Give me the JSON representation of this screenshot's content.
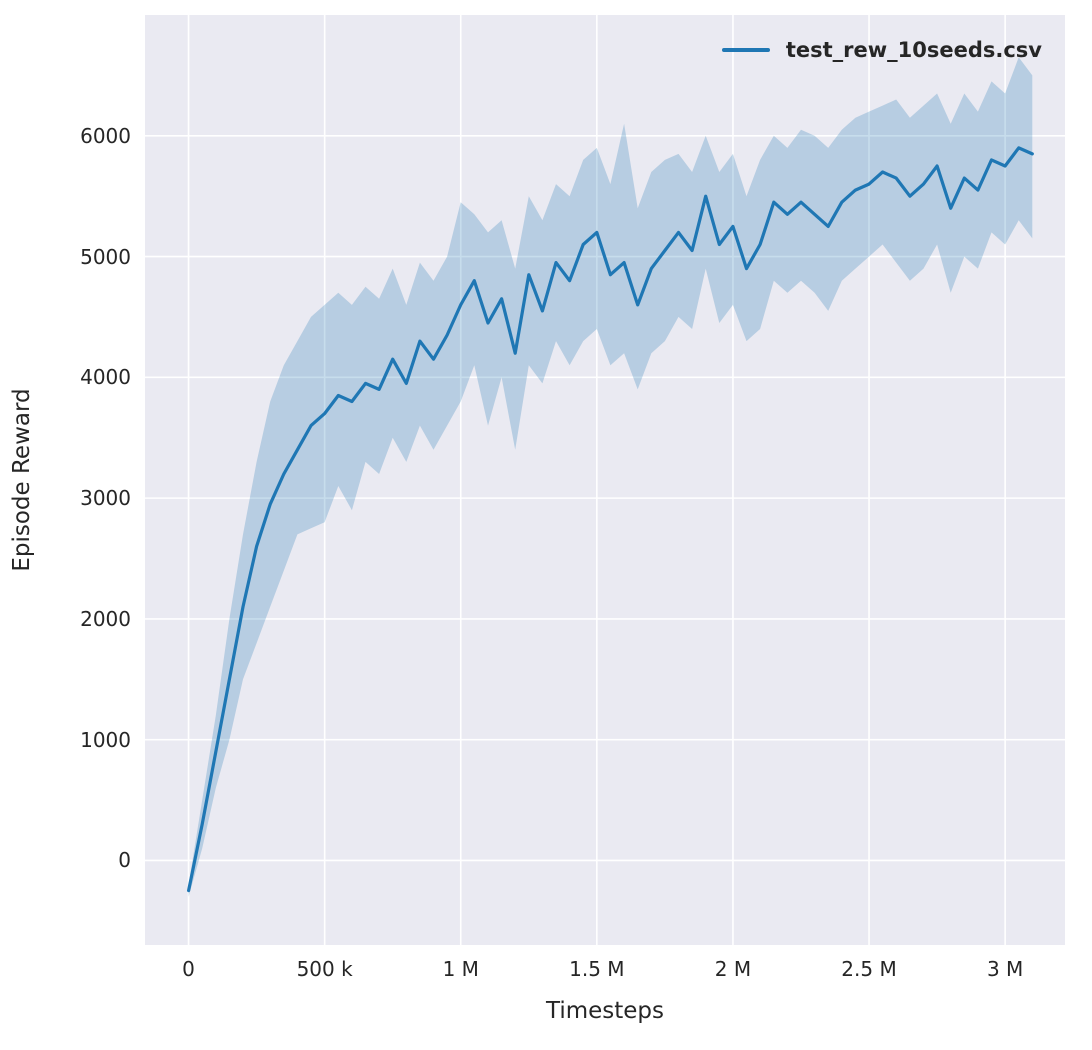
{
  "figure": {
    "background": "#ffffff",
    "axes_background": "#eaeaf2",
    "grid_color": "#ffffff",
    "line_color": "#1f77b4",
    "band_color": "#1f77b4",
    "band_opacity": 0.25,
    "text_color": "#262626"
  },
  "legend": {
    "label": "test_rew_10seeds.csv"
  },
  "chart_data": {
    "type": "line",
    "title": "",
    "xlabel": "Timesteps",
    "ylabel": "Episode Reward",
    "xlim": [
      -160000,
      3220000
    ],
    "ylim": [
      -700,
      7000
    ],
    "grid": true,
    "legend_position": "upper right",
    "x_ticks": [
      0,
      500000,
      1000000,
      1500000,
      2000000,
      2500000,
      3000000
    ],
    "x_tick_labels": [
      "0",
      "500 k",
      "1 M",
      "1.5 M",
      "2 M",
      "2.5 M",
      "3 M"
    ],
    "y_ticks": [
      0,
      1000,
      2000,
      3000,
      4000,
      5000,
      6000
    ],
    "y_tick_labels": [
      "0",
      "1000",
      "2000",
      "3000",
      "4000",
      "5000",
      "6000"
    ],
    "series": [
      {
        "name": "test_rew_10seeds.csv",
        "x": [
          0,
          50000,
          100000,
          150000,
          200000,
          250000,
          300000,
          350000,
          400000,
          450000,
          500000,
          550000,
          600000,
          650000,
          700000,
          750000,
          800000,
          850000,
          900000,
          950000,
          1000000,
          1050000,
          1100000,
          1150000,
          1200000,
          1250000,
          1300000,
          1350000,
          1400000,
          1450000,
          1500000,
          1550000,
          1600000,
          1650000,
          1700000,
          1750000,
          1800000,
          1850000,
          1900000,
          1950000,
          2000000,
          2050000,
          2100000,
          2150000,
          2200000,
          2250000,
          2300000,
          2350000,
          2400000,
          2450000,
          2500000,
          2550000,
          2600000,
          2650000,
          2700000,
          2750000,
          2800000,
          2850000,
          2900000,
          2950000,
          3000000,
          3050000,
          3100000
        ],
        "mean": [
          -250,
          300,
          900,
          1500,
          2100,
          2600,
          2950,
          3200,
          3400,
          3600,
          3700,
          3850,
          3800,
          3950,
          3900,
          4150,
          3950,
          4300,
          4150,
          4350,
          4600,
          4800,
          4450,
          4650,
          4200,
          4850,
          4550,
          4950,
          4800,
          5100,
          5200,
          4850,
          4950,
          4600,
          4900,
          5050,
          5200,
          5050,
          5500,
          5100,
          5250,
          4900,
          5100,
          5450,
          5350,
          5450,
          5350,
          5250,
          5450,
          5550,
          5600,
          5700,
          5650,
          5500,
          5600,
          5750,
          5400,
          5650,
          5550,
          5800,
          5750,
          5900,
          5850
        ],
        "lower": [
          -300,
          100,
          600,
          1000,
          1500,
          1800,
          2100,
          2400,
          2700,
          2750,
          2800,
          3100,
          2900,
          3300,
          3200,
          3500,
          3300,
          3600,
          3400,
          3600,
          3800,
          4100,
          3600,
          4000,
          3400,
          4100,
          3950,
          4300,
          4100,
          4300,
          4400,
          4100,
          4200,
          3900,
          4200,
          4300,
          4500,
          4400,
          4900,
          4450,
          4600,
          4300,
          4400,
          4800,
          4700,
          4800,
          4700,
          4550,
          4800,
          4900,
          5000,
          5100,
          4950,
          4800,
          4900,
          5100,
          4700,
          5000,
          4900,
          5200,
          5100,
          5300,
          5150
        ],
        "upper": [
          -200,
          500,
          1200,
          2000,
          2700,
          3300,
          3800,
          4100,
          4300,
          4500,
          4600,
          4700,
          4600,
          4750,
          4650,
          4900,
          4600,
          4950,
          4800,
          5000,
          5450,
          5350,
          5200,
          5300,
          4900,
          5500,
          5300,
          5600,
          5500,
          5800,
          5900,
          5600,
          6100,
          5400,
          5700,
          5800,
          5850,
          5700,
          6000,
          5700,
          5850,
          5500,
          5800,
          6000,
          5900,
          6050,
          6000,
          5900,
          6050,
          6150,
          6200,
          6250,
          6300,
          6150,
          6250,
          6350,
          6100,
          6350,
          6200,
          6450,
          6350,
          6650,
          6500
        ]
      }
    ]
  }
}
